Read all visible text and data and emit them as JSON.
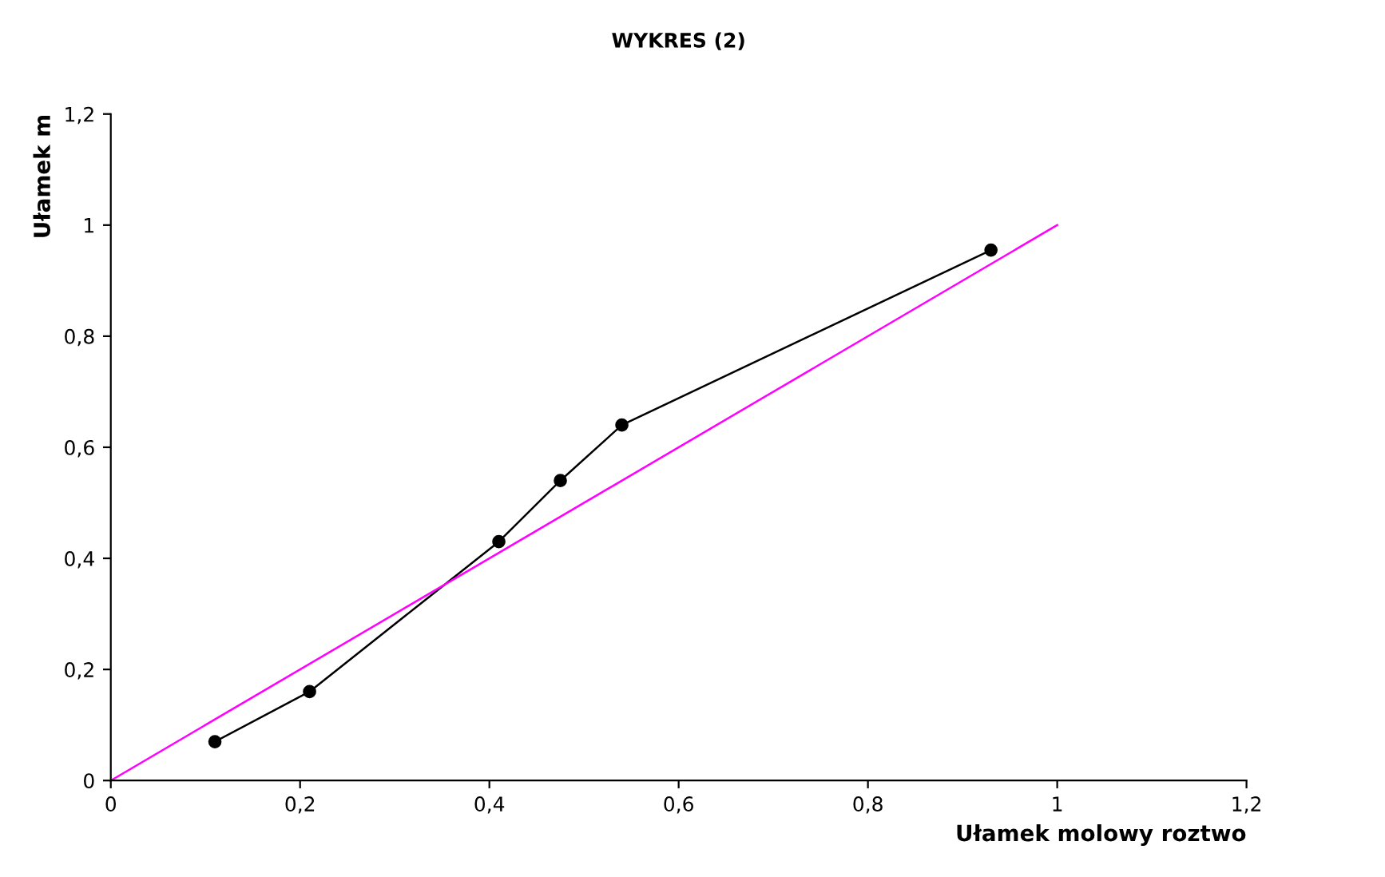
{
  "chart_data": {
    "type": "line",
    "title": "WYKRES (2)",
    "xlabel": "Ułamek molowy roztwo",
    "ylabel": "Ułamek m",
    "xlim": [
      0,
      1.2
    ],
    "ylim": [
      0,
      1.2
    ],
    "xticks": [
      0,
      {
        "value": 0.2,
        "label": "0,2"
      },
      {
        "value": 0.4,
        "label": "0,4"
      },
      {
        "value": 0.6,
        "label": "0,6"
      },
      {
        "value": 0.8,
        "label": "0,8"
      },
      1,
      {
        "value": 1.2,
        "label": "1,2"
      }
    ],
    "yticks": [
      0,
      {
        "value": 0.2,
        "label": "0,2"
      },
      {
        "value": 0.4,
        "label": "0,4"
      },
      {
        "value": 0.6,
        "label": "0,6"
      },
      {
        "value": 0.8,
        "label": "0,8"
      },
      1,
      {
        "value": 1.2,
        "label": "1,2"
      }
    ],
    "grid": false,
    "legend": false,
    "series": [
      {
        "color": "#000000",
        "marker": "circle",
        "x": [
          0.11,
          0.21,
          0.41,
          0.475,
          0.54,
          0.93
        ],
        "values": [
          0.07,
          0.16,
          0.43,
          0.54,
          0.64,
          0.955
        ]
      },
      {
        "color": "#ff00ff",
        "marker": "none",
        "x": [
          0,
          1
        ],
        "values": [
          0,
          1
        ]
      }
    ]
  }
}
